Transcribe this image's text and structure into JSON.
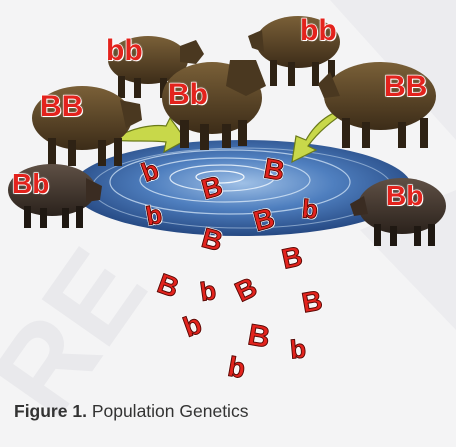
{
  "boar_labels": {
    "boar_1": "bb",
    "boar_2": "bb",
    "boar_3": "Bb",
    "boar_4": "BB",
    "boar_5": "BB",
    "boar_6": "Bb",
    "boar_7": "Bb"
  },
  "alleles": [
    "b",
    "B",
    "B",
    "b",
    "B",
    "b",
    "B",
    "B",
    "B",
    "b",
    "B",
    "B",
    "b",
    "B",
    "b",
    "b"
  ],
  "caption": {
    "figure_label": "Figure 1.",
    "text": "Population Genetics"
  },
  "colors": {
    "allele_red": "#e3231d",
    "water_blue": "#2f5a9c",
    "arrow_yellow": "#c8d84a",
    "boar_brown": "#5a4528",
    "caption_gray": "#333333"
  }
}
